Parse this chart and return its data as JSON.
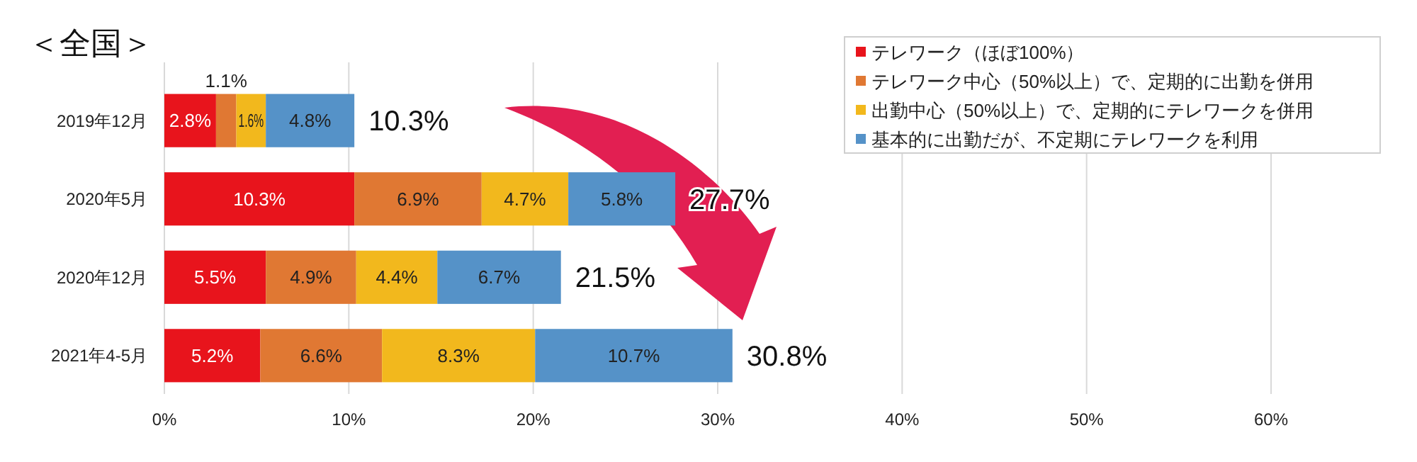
{
  "chart_data": {
    "type": "bar",
    "orientation": "horizontal",
    "stacked": true,
    "title": "＜全国＞",
    "categories": [
      "2019年12月",
      "2020年5月",
      "2020年12月",
      "2021年4-5月"
    ],
    "series": [
      {
        "name": "テレワーク（ほぼ100%）",
        "color": "#e8141c",
        "values": [
          2.8,
          10.3,
          5.5,
          5.2
        ],
        "value_labels": [
          "2.8%",
          "10.3%",
          "5.5%",
          "5.2%"
        ]
      },
      {
        "name": "テレワーク中心（50%以上）で、定期的に出勤を併用",
        "color": "#e07833",
        "values": [
          1.1,
          6.9,
          4.9,
          6.6
        ],
        "value_labels": [
          "1.1%",
          "6.9%",
          "4.9%",
          "6.6%"
        ]
      },
      {
        "name": "出勤中心（50%以上）で、定期的にテレワークを併用",
        "color": "#f2b81d",
        "values": [
          1.6,
          4.7,
          4.4,
          8.3
        ],
        "value_labels": [
          "1.6%",
          "4.7%",
          "4.4%",
          "8.3%"
        ]
      },
      {
        "name": "基本的に出勤だが、不定期にテレワークを利用",
        "color": "#5592c8",
        "values": [
          4.8,
          5.8,
          6.7,
          10.7
        ],
        "value_labels": [
          "4.8%",
          "5.8%",
          "6.7%",
          "10.7%"
        ]
      }
    ],
    "totals": [
      "10.3%",
      "27.7%",
      "21.5%",
      "30.8%"
    ],
    "xlim": [
      0,
      60
    ],
    "xticks": [
      {
        "value": 0,
        "label": "0%"
      },
      {
        "value": 10,
        "label": "10%"
      },
      {
        "value": 20,
        "label": "20%"
      },
      {
        "value": 30,
        "label": "30%"
      },
      {
        "value": 40,
        "label": "40%"
      },
      {
        "value": 50,
        "label": "50%"
      },
      {
        "value": 60,
        "label": "60%"
      }
    ],
    "grid": "x",
    "legend": "top right"
  }
}
